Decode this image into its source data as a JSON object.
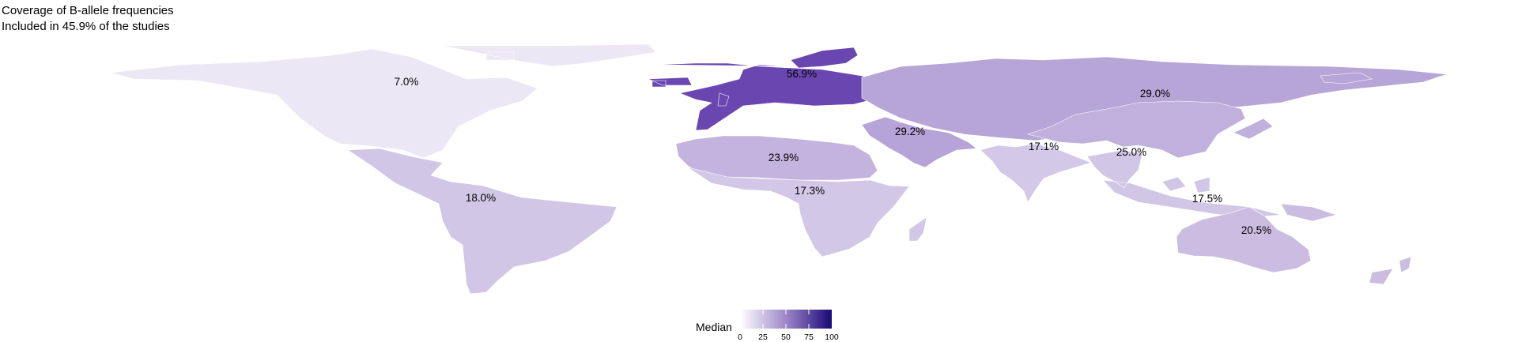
{
  "title": "Coverage of B-allele frequencies",
  "subtitle": "Included in 45.9% of the studies",
  "legend": {
    "title": "Median",
    "ticks": [
      "0",
      "25",
      "50",
      "75",
      "100"
    ],
    "color_low": "#ffffff",
    "color_high": "#1a0877"
  },
  "regions": [
    {
      "name": "North America",
      "label": "7.0%",
      "value": 7.0,
      "color": "#ece7f4"
    },
    {
      "name": "Latin America",
      "label": "18.0%",
      "value": 18.0,
      "color": "#d2c6e6"
    },
    {
      "name": "Europe",
      "label": "56.9%",
      "value": 56.9,
      "color": "#6a47b0"
    },
    {
      "name": "Russia & Central Asia",
      "label": "29.0%",
      "value": 29.0,
      "color": "#b8a5d8"
    },
    {
      "name": "Middle East",
      "label": "29.2%",
      "value": 29.2,
      "color": "#b6a3d7"
    },
    {
      "name": "North Africa",
      "label": "23.9%",
      "value": 23.9,
      "color": "#c3b3de"
    },
    {
      "name": "Sub-Saharan Africa",
      "label": "17.3%",
      "value": 17.3,
      "color": "#d3c7e7"
    },
    {
      "name": "South Asia",
      "label": "17.1%",
      "value": 17.1,
      "color": "#d3c8e7"
    },
    {
      "name": "East Asia",
      "label": "25.0%",
      "value": 25.0,
      "color": "#c0b0dd"
    },
    {
      "name": "Southeast Asia",
      "label": "17.5%",
      "value": 17.5,
      "color": "#d2c6e6"
    },
    {
      "name": "Oceania",
      "label": "20.5%",
      "value": 20.5,
      "color": "#cbbde2"
    }
  ]
}
